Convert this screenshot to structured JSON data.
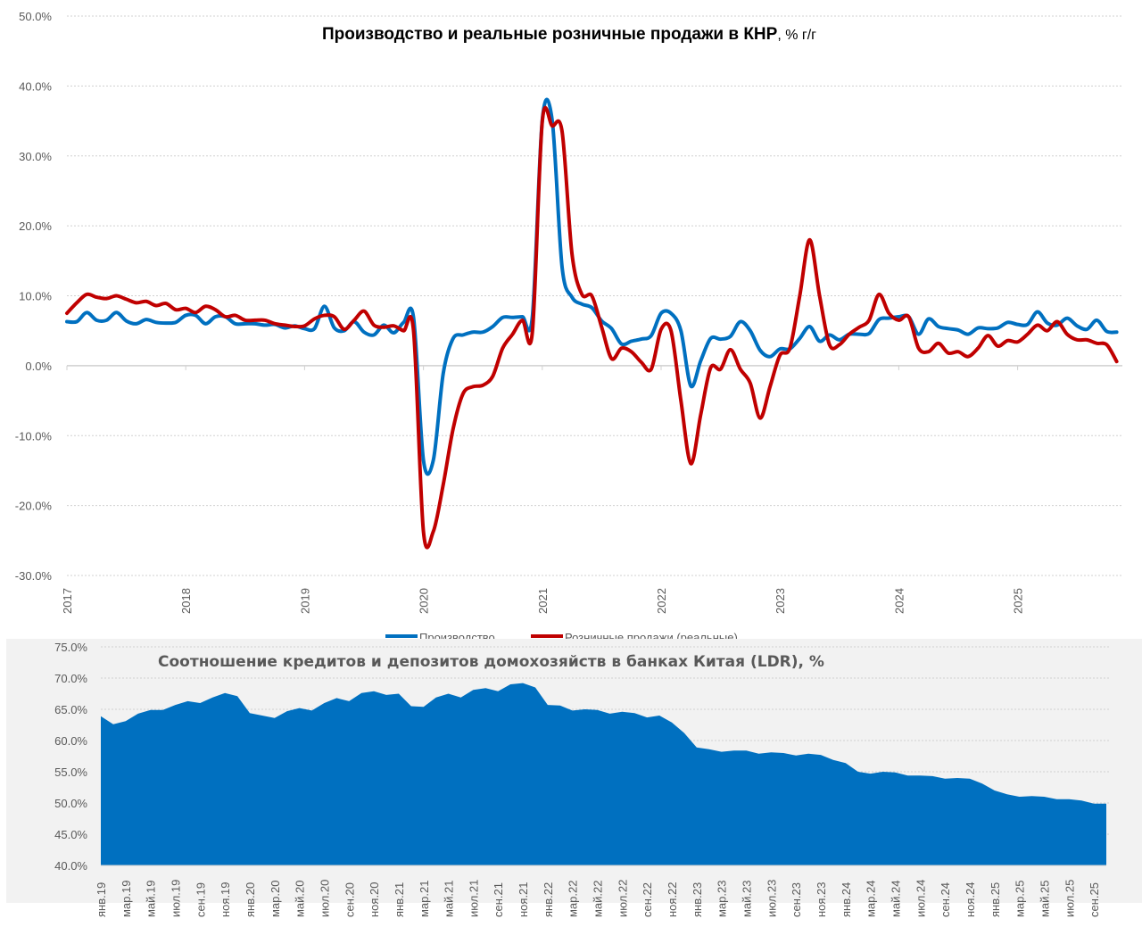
{
  "chart_data": [
    {
      "type": "line",
      "title": "Производство и реальные розничные продажи в КНР",
      "title_suffix": ", % г/г",
      "x_tick_labels": [
        "2017",
        "2018",
        "2019",
        "2020",
        "2021",
        "2022",
        "2023",
        "2024",
        "2025"
      ],
      "x_range": [
        "2017-01",
        "2025-11"
      ],
      "frequency": "monthly",
      "y_tick_labels": [
        "50.0%",
        "40.0%",
        "30.0%",
        "20.0%",
        "10.0%",
        "0.0%",
        "-10.0%",
        "-20.0%",
        "-30.0%"
      ],
      "ylim": [
        -30,
        50
      ],
      "grid": true,
      "legend_position": "bottom",
      "series": [
        {
          "name": "Производство",
          "color": "#0070c0",
          "values": [
            6.3,
            6.3,
            7.6,
            6.5,
            6.5,
            7.6,
            6.4,
            6.0,
            6.6,
            6.2,
            6.1,
            6.2,
            7.2,
            7.2,
            6.0,
            7.0,
            7.0,
            6.0,
            6.0,
            6.0,
            5.8,
            5.9,
            5.4,
            5.7,
            5.3,
            5.3,
            8.5,
            5.4,
            5.0,
            6.3,
            4.8,
            4.4,
            5.8,
            4.7,
            6.2,
            6.9,
            -13.5,
            -13.5,
            -1.1,
            3.9,
            4.4,
            4.8,
            4.8,
            5.6,
            6.9,
            6.9,
            7.0,
            7.0,
            35.1,
            35.1,
            14.1,
            9.8,
            8.8,
            8.3,
            6.4,
            5.3,
            3.1,
            3.5,
            3.8,
            4.3,
            7.5,
            7.5,
            5.0,
            -2.9,
            0.7,
            3.9,
            3.8,
            4.2,
            6.3,
            5.0,
            2.2,
            1.3,
            2.4,
            2.4,
            3.9,
            5.6,
            3.5,
            4.4,
            3.7,
            4.5,
            4.5,
            4.6,
            6.6,
            6.8,
            7.0,
            7.0,
            4.5,
            6.7,
            5.6,
            5.3,
            5.1,
            4.5,
            5.4,
            5.3,
            5.4,
            6.2,
            5.9,
            5.9,
            7.7,
            6.1,
            5.8,
            6.8,
            5.7,
            5.2,
            6.5,
            4.9,
            4.8
          ]
        },
        {
          "name": "Розничные продажи (реальные)",
          "color": "#c00000",
          "values": [
            7.5,
            9.0,
            10.2,
            9.8,
            9.6,
            10.0,
            9.5,
            9.0,
            9.2,
            8.6,
            8.9,
            8.0,
            8.2,
            7.6,
            8.5,
            8.0,
            7.0,
            7.2,
            6.5,
            6.5,
            6.5,
            6.0,
            5.8,
            5.6,
            5.7,
            6.7,
            7.2,
            7.0,
            5.2,
            6.5,
            7.8,
            5.8,
            5.5,
            5.7,
            5.0,
            5.0,
            -23.7,
            -23.7,
            -17.0,
            -9.0,
            -4.0,
            -3.0,
            -2.8,
            -1.5,
            2.5,
            4.5,
            6.5,
            4.8,
            34.9,
            34.3,
            33.5,
            16.0,
            10.2,
            10.0,
            5.5,
            1.0,
            2.5,
            2.0,
            0.5,
            -0.5,
            5.2,
            5.0,
            -5.0,
            -14.0,
            -7.0,
            -0.3,
            -0.5,
            2.3,
            -0.5,
            -2.5,
            -7.5,
            -3.0,
            1.5,
            2.5,
            10.0,
            18.0,
            10.0,
            3.0,
            3.0,
            4.5,
            5.5,
            6.5,
            10.2,
            7.5,
            6.5,
            7.0,
            2.5,
            2.0,
            3.2,
            1.8,
            2.0,
            1.3,
            2.5,
            4.3,
            2.8,
            3.6,
            3.4,
            4.5,
            5.8,
            5.0,
            6.3,
            4.5,
            3.7,
            3.7,
            3.2,
            3.0,
            0.6
          ]
        }
      ]
    },
    {
      "type": "area",
      "title": "Соотношение кредитов и депозитов домохозяйств в банках Китая (LDR), %",
      "x_range": [
        "2019-01",
        "2025-10"
      ],
      "frequency": "monthly",
      "x_tick_labels": [
        "янв.19",
        "мар.19",
        "май.19",
        "июл.19",
        "сен.19",
        "ноя.19",
        "янв.20",
        "мар.20",
        "май.20",
        "июл.20",
        "сен.20",
        "ноя.20",
        "янв.21",
        "мар.21",
        "май.21",
        "июл.21",
        "сен.21",
        "ноя.21",
        "янв.22",
        "мар.22",
        "май.22",
        "июл.22",
        "сен.22",
        "ноя.22",
        "янв.23",
        "мар.23",
        "май.23",
        "июл.23",
        "сен.23",
        "ноя.23",
        "янв.24",
        "мар.24",
        "май.24",
        "июл.24",
        "сен.24",
        "ноя.24",
        "янв.25",
        "мар.25",
        "май.25",
        "июл.25",
        "сен.25"
      ],
      "y_tick_labels": [
        "75.0%",
        "70.0%",
        "65.0%",
        "60.0%",
        "55.0%",
        "50.0%",
        "45.0%",
        "40.0%"
      ],
      "ylim": [
        40,
        75
      ],
      "grid": true,
      "color": "#0070c0",
      "values": [
        63.9,
        62.6,
        63.1,
        64.3,
        64.9,
        64.9,
        65.7,
        66.3,
        66.0,
        66.9,
        67.6,
        67.1,
        64.4,
        64.0,
        63.6,
        64.7,
        65.2,
        64.8,
        66.0,
        66.8,
        66.3,
        67.6,
        67.9,
        67.3,
        67.5,
        65.5,
        65.4,
        66.9,
        67.5,
        66.9,
        68.1,
        68.4,
        67.9,
        69.0,
        69.2,
        68.5,
        65.7,
        65.6,
        64.8,
        65.0,
        64.9,
        64.3,
        64.6,
        64.4,
        63.7,
        64.0,
        62.9,
        61.2,
        58.9,
        58.6,
        58.2,
        58.4,
        58.4,
        57.9,
        58.1,
        58.0,
        57.6,
        57.9,
        57.7,
        56.9,
        56.4,
        55.0,
        54.7,
        55.0,
        54.9,
        54.4,
        54.4,
        54.3,
        53.9,
        54.0,
        53.9,
        53.1,
        52.0,
        51.4,
        51.0,
        51.1,
        51.0,
        50.6,
        50.6,
        50.4,
        49.9,
        49.9
      ]
    }
  ]
}
